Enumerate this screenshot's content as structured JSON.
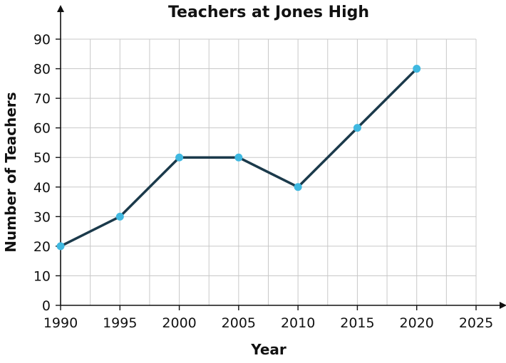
{
  "chart_data": {
    "type": "line",
    "title": "Teachers at Jones High",
    "xlabel": "Year",
    "ylabel": "Number of Teachers",
    "xlim": [
      1990,
      2025
    ],
    "ylim": [
      0,
      90
    ],
    "x_ticks": [
      1990,
      1995,
      2000,
      2005,
      2010,
      2015,
      2020,
      2025
    ],
    "y_ticks": [
      0,
      10,
      20,
      30,
      40,
      50,
      60,
      70,
      80,
      90
    ],
    "grid": true,
    "series": [
      {
        "x": [
          1990,
          1995,
          2000,
          2005,
          2010,
          2015,
          2020
        ],
        "values": [
          20,
          30,
          50,
          50,
          40,
          60,
          80
        ]
      }
    ],
    "colors": {
      "line": "#1b3a4b",
      "marker": "#3fb8e0",
      "grid": "#c8c8c8",
      "axis": "#111111"
    }
  }
}
